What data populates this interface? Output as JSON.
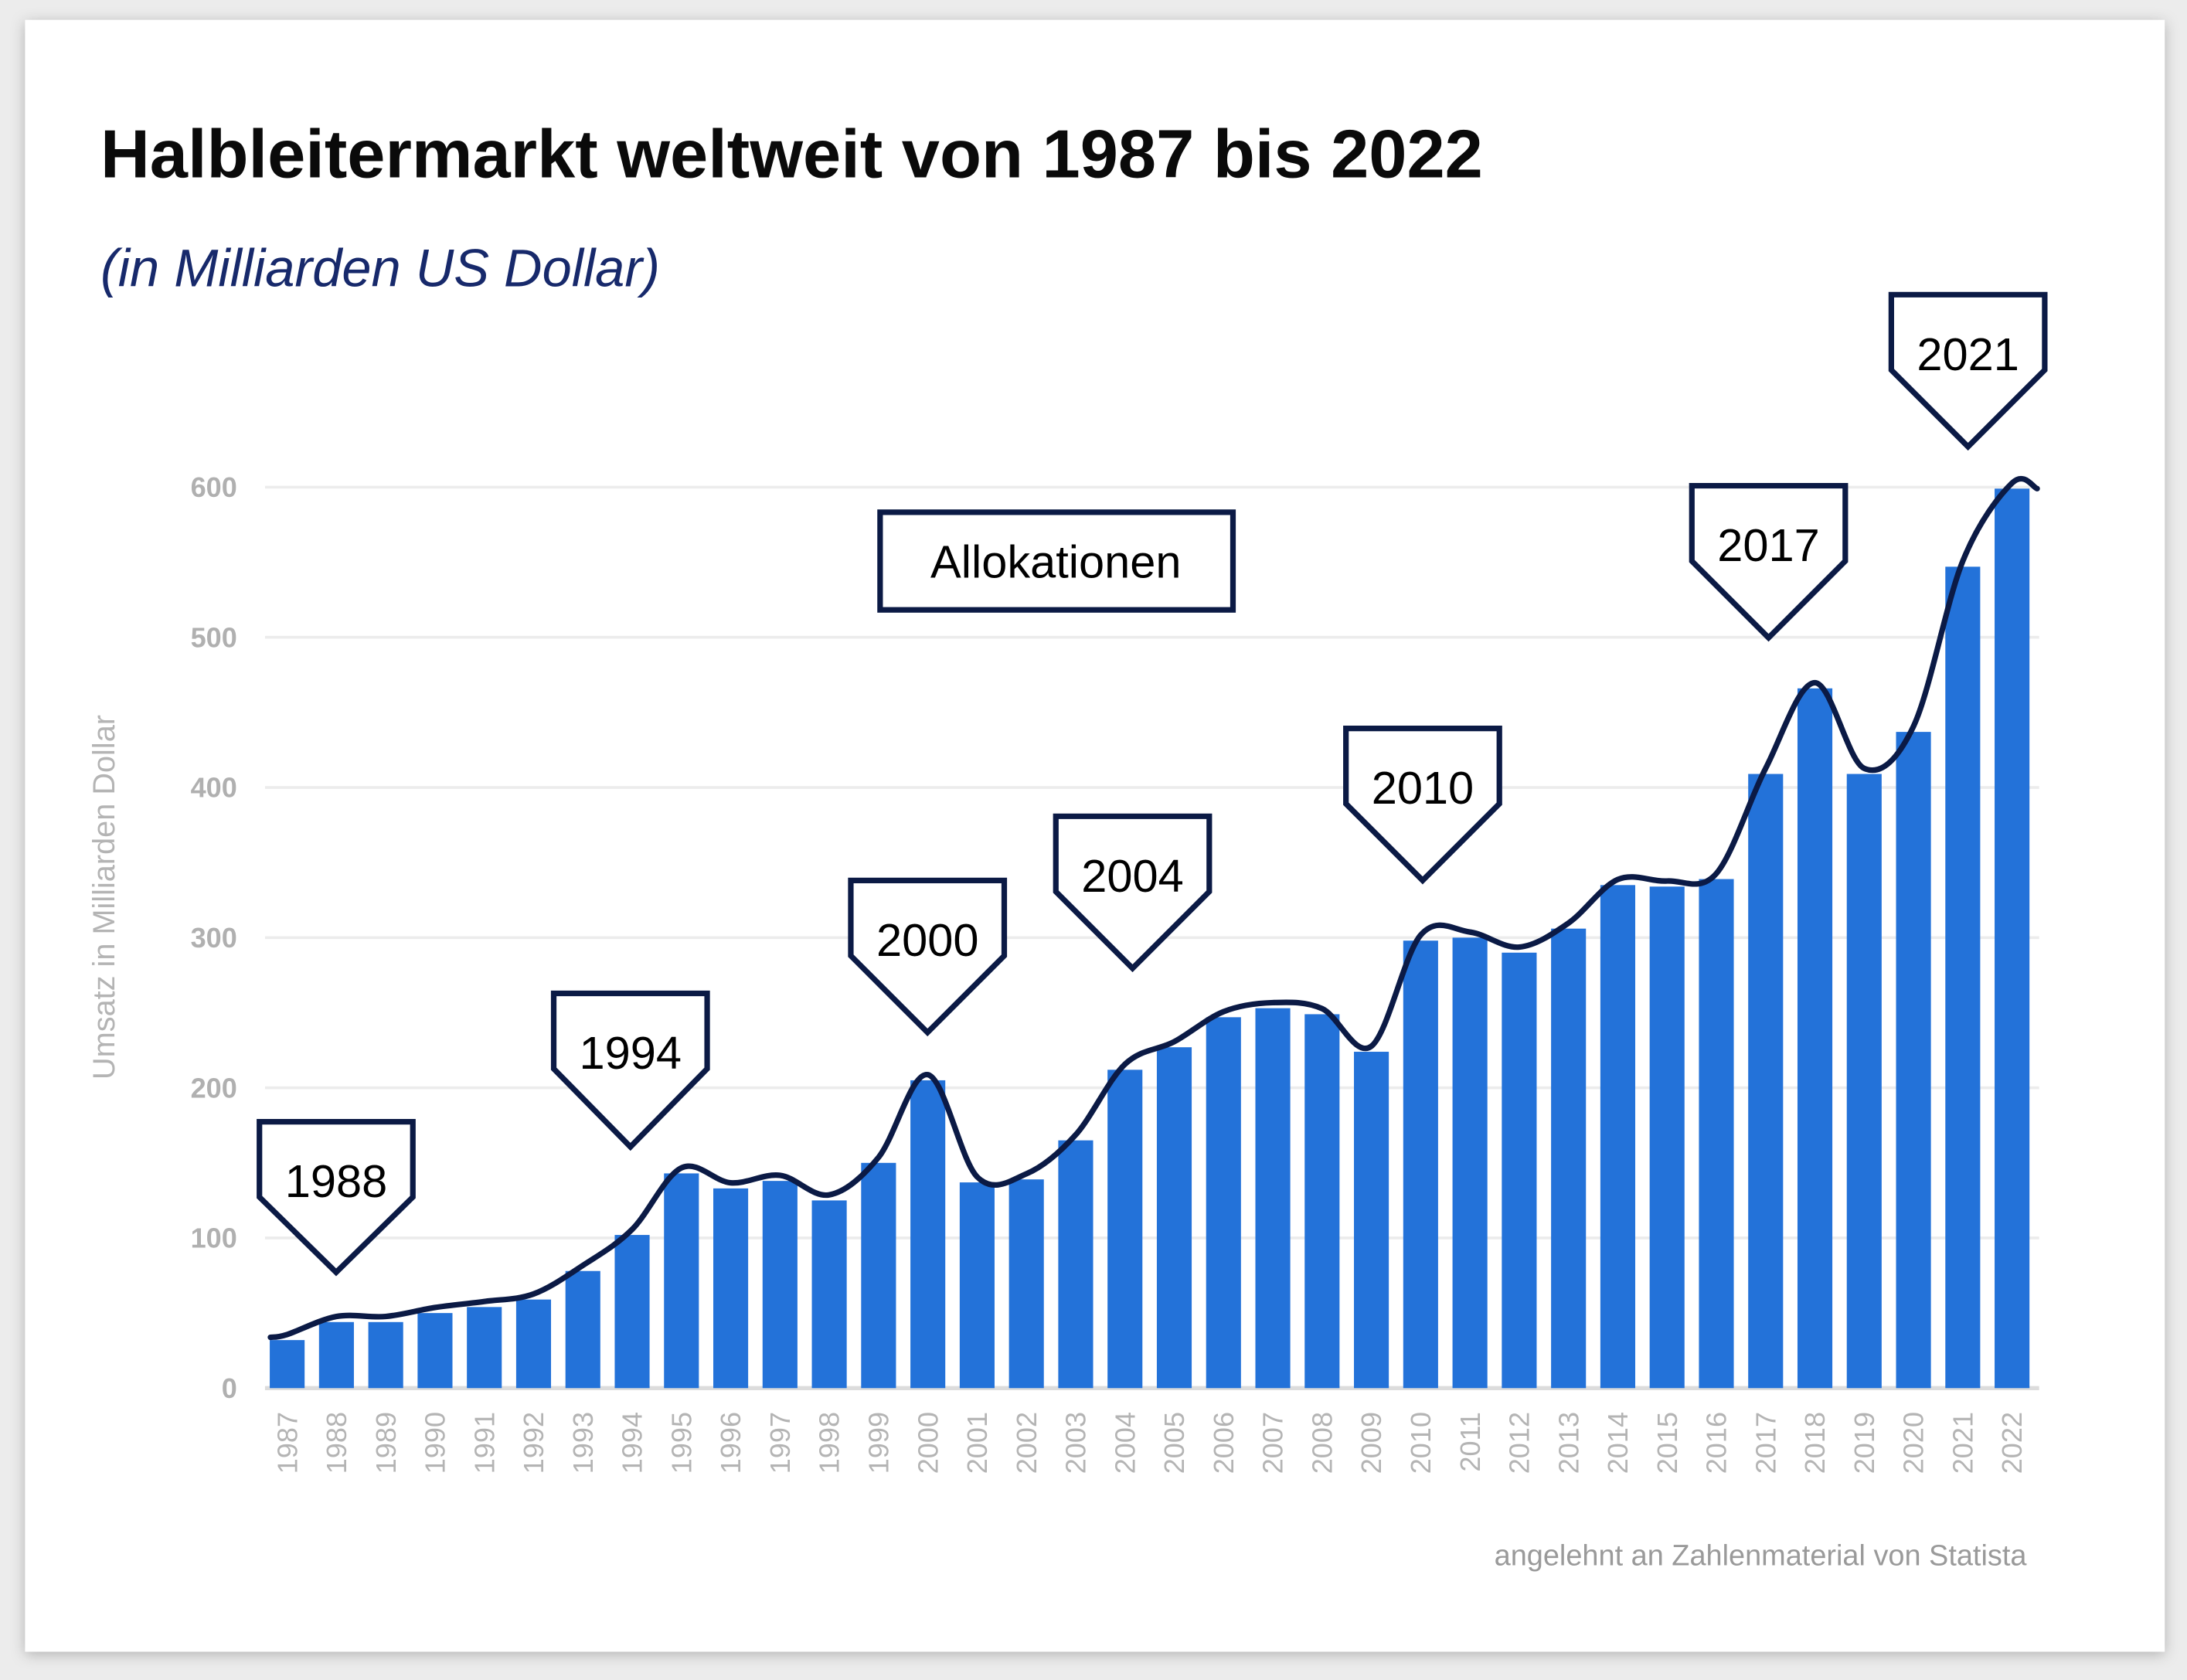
{
  "chart_data": {
    "type": "bar",
    "title": "Halbleitermarkt weltweit von 1987 bis 2022",
    "subtitle": "(in Milliarden  US Dollar)",
    "ylabel": "Umsatz in Milliarden Dollar",
    "xlabel": "",
    "ylim": [
      0,
      600
    ],
    "yticks": [
      "0",
      "100",
      "200",
      "300",
      "400",
      "500",
      "600"
    ],
    "grid": true,
    "categories": [
      "1987",
      "1988",
      "1989",
      "1990",
      "1991",
      "1992",
      "1993",
      "1994",
      "1995",
      "1996",
      "1997",
      "1998",
      "1999",
      "2000",
      "2001",
      "2002",
      "2003",
      "2004",
      "2005",
      "2006",
      "2007",
      "2008",
      "2009",
      "2010",
      "2011",
      "2012",
      "2013",
      "2014",
      "2015",
      "2016",
      "2017",
      "2018",
      "2019",
      "2020",
      "2021",
      "2022"
    ],
    "values": [
      32,
      44,
      44,
      50,
      54,
      59,
      78,
      102,
      143,
      133,
      138,
      125,
      150,
      205,
      137,
      139,
      165,
      212,
      227,
      247,
      253,
      249,
      224,
      298,
      300,
      290,
      306,
      335,
      334,
      339,
      409,
      466,
      409,
      437,
      547,
      599
    ],
    "bar_color": "#2372d9",
    "trend_line_color": "#0b1a45",
    "annotations": {
      "box_label": "Allokationen",
      "callouts": [
        "1988",
        "1994",
        "2000",
        "2004",
        "2010",
        "2017",
        "2021"
      ]
    },
    "source": "angelehnt an Zahlenmaterial von Statista"
  }
}
